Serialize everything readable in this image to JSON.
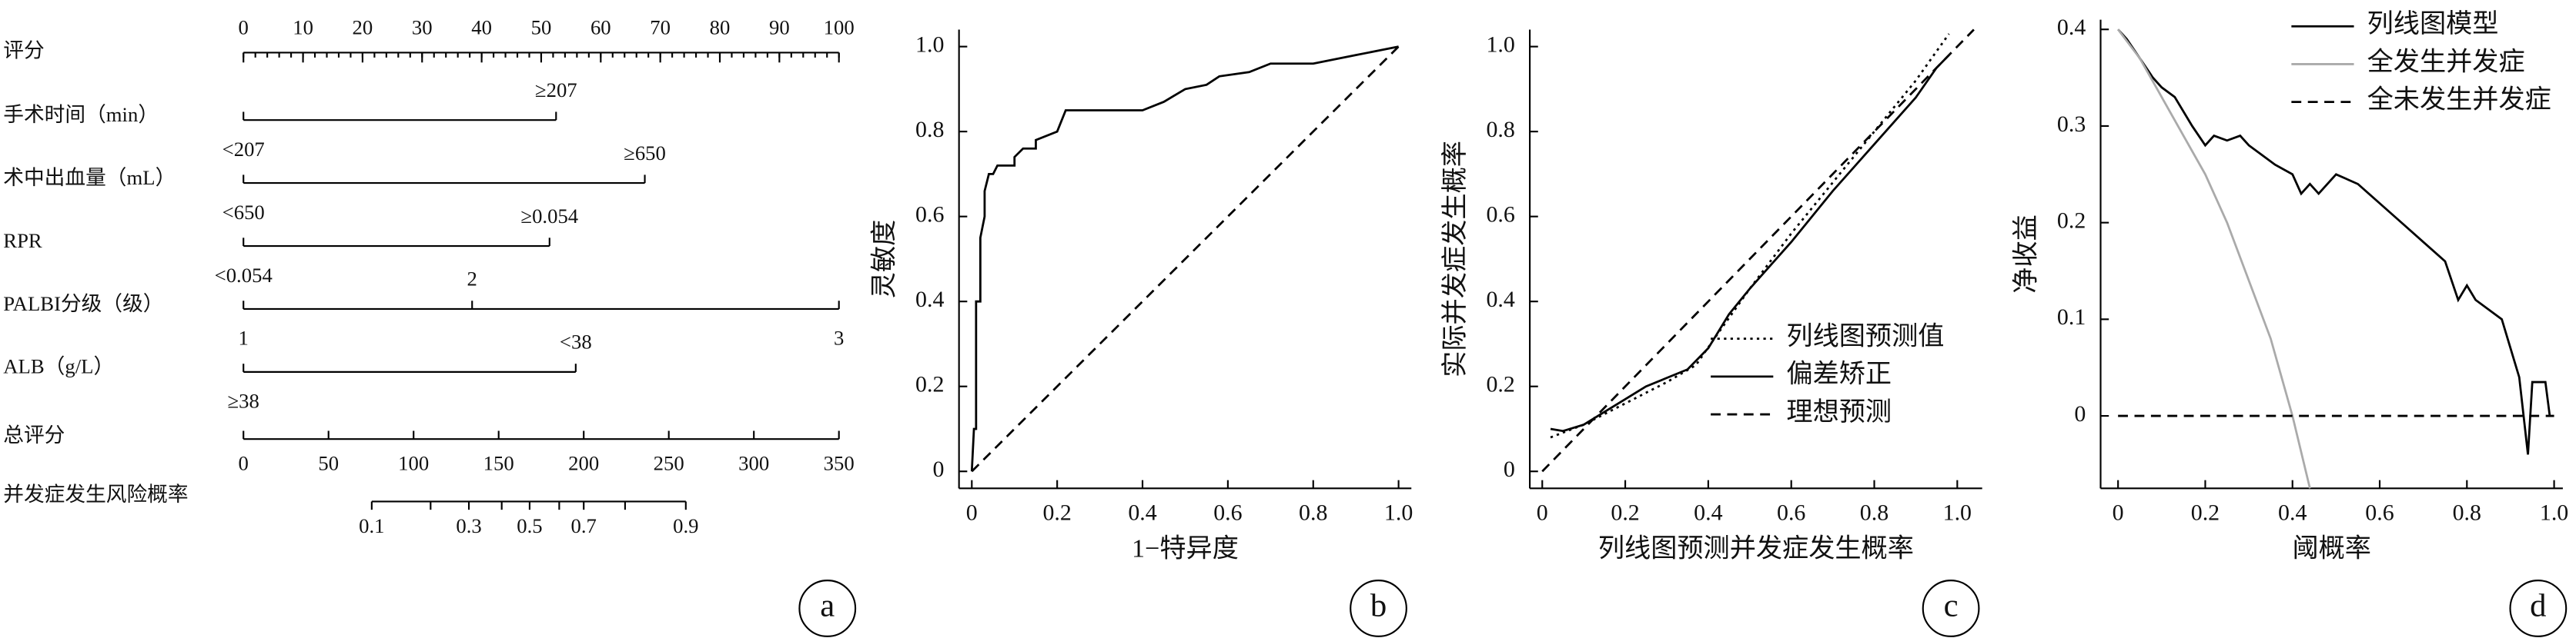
{
  "chart_data": [
    {
      "type": "nomogram",
      "panel": "a",
      "points_axis": {
        "name": "评分",
        "xlim": [
          0,
          100
        ],
        "ticks": [
          0,
          10,
          20,
          30,
          40,
          50,
          60,
          70,
          80,
          90,
          100
        ],
        "minor_ticks": [
          0,
          2,
          4,
          6,
          8,
          10,
          12,
          14,
          16,
          18,
          20,
          22,
          24,
          26,
          28,
          30,
          32,
          34,
          36,
          38,
          40,
          42,
          44,
          46,
          48,
          50,
          52,
          54,
          56,
          58,
          60,
          62,
          64,
          66,
          68,
          70,
          72,
          74,
          76,
          78,
          80,
          82,
          84,
          86,
          88,
          90,
          92,
          94,
          96,
          98,
          100
        ]
      },
      "variables": [
        {
          "name": "手术时间（min）",
          "levels": [
            {
              "label": "<207",
              "points": 0,
              "side": "below"
            },
            {
              "label": "≥207",
              "points": 52.5,
              "side": "above"
            }
          ]
        },
        {
          "name": "术中出血量（mL）",
          "levels": [
            {
              "label": "<650",
              "points": 0,
              "side": "below"
            },
            {
              "label": "≥650",
              "points": 67.4,
              "side": "above"
            }
          ]
        },
        {
          "name": "RPR",
          "levels": [
            {
              "label": "<0.054",
              "points": 0,
              "side": "below"
            },
            {
              "label": "≥0.054",
              "points": 51.4,
              "side": "above"
            }
          ]
        },
        {
          "name": "PALBI分级（级）",
          "levels": [
            {
              "label": "1",
              "points": 0,
              "side": "below"
            },
            {
              "label": "2",
              "points": 38.4,
              "side": "above"
            },
            {
              "label": "3",
              "points": 100,
              "side": "below"
            }
          ]
        },
        {
          "name": "ALB（g/L）",
          "levels": [
            {
              "label": "≥38",
              "points": 0,
              "side": "below"
            },
            {
              "label": "<38",
              "points": 55.8,
              "side": "above"
            }
          ]
        }
      ],
      "total_axis": {
        "name": "总评分",
        "xlim": [
          0,
          350
        ],
        "ticks": [
          0,
          50,
          100,
          150,
          200,
          250,
          300,
          350
        ]
      },
      "risk_axis": {
        "name": "并发症发生风险概率",
        "ticks": [
          {
            "points": 75.4,
            "label": "0.1"
          },
          {
            "points": 110
          },
          {
            "points": 132.5,
            "label": "0.3"
          },
          {
            "points": 151.8
          },
          {
            "points": 168.2,
            "label": "0.5"
          },
          {
            "points": 185.6
          },
          {
            "points": 200,
            "label": "0.7"
          },
          {
            "points": 224.3
          },
          {
            "points": 260,
            "label": "0.9"
          }
        ]
      }
    },
    {
      "type": "line",
      "panel": "b",
      "xlabel": "1−特异度",
      "ylabel": "灵敏度",
      "xlim": [
        -0.03,
        1.03
      ],
      "ylim": [
        -0.04,
        1.04
      ],
      "xticks": [
        0,
        0.2,
        0.4,
        0.6,
        0.8,
        {
          "value": 1,
          "label": "1.0"
        }
      ],
      "yticks": [
        0,
        0.2,
        0.4,
        0.6,
        0.8,
        {
          "value": 1,
          "label": "1.0"
        }
      ],
      "series": [
        {
          "color": "#000000",
          "style": "solid",
          "x": [
            0,
            0.005,
            0.01,
            0.01,
            0.02,
            0.02,
            0.03,
            0.03,
            0.04,
            0.05,
            0.06,
            0.1,
            0.1,
            0.12,
            0.15,
            0.15,
            0.2,
            0.22,
            0.3,
            0.4,
            0.45,
            0.5,
            0.55,
            0.58,
            0.65,
            0.7,
            0.8,
            0.9,
            1
          ],
          "values": [
            0,
            0.1,
            0.1,
            0.4,
            0.4,
            0.55,
            0.6,
            0.66,
            0.7,
            0.7,
            0.72,
            0.72,
            0.74,
            0.76,
            0.76,
            0.78,
            0.8,
            0.85,
            0.85,
            0.85,
            0.87,
            0.9,
            0.91,
            0.93,
            0.94,
            0.96,
            0.96,
            0.98,
            1
          ]
        },
        {
          "color": "#000000",
          "style": "dashed",
          "x": [
            0,
            1.01
          ],
          "values": [
            0,
            1.01
          ]
        }
      ]
    },
    {
      "type": "line",
      "panel": "c",
      "xlabel": "列线图预测并发症发生概率",
      "ylabel": "实际并发症发生概率",
      "xlim": [
        -0.03,
        1.06
      ],
      "ylim": [
        -0.04,
        1.04
      ],
      "xticks": [
        0,
        0.2,
        0.4,
        0.6,
        0.8,
        {
          "value": 1,
          "label": "1.0"
        }
      ],
      "yticks": [
        0,
        0.2,
        0.4,
        0.6,
        0.8,
        {
          "value": 1,
          "label": "1.0"
        }
      ],
      "legend": "lower right",
      "series": [
        {
          "name": "列线图预测值",
          "color": "#000000",
          "style": "dotted",
          "x": [
            0.02,
            0.1,
            0.2,
            0.3,
            0.37,
            0.42,
            0.5,
            0.6,
            0.7,
            0.8,
            0.9,
            0.98
          ],
          "values": [
            0.08,
            0.11,
            0.16,
            0.21,
            0.25,
            0.32,
            0.43,
            0.56,
            0.68,
            0.8,
            0.92,
            1.03
          ]
        },
        {
          "name": "偏差矫正",
          "color": "#000000",
          "style": "solid",
          "x": [
            0.02,
            0.05,
            0.1,
            0.15,
            0.2,
            0.25,
            0.3,
            0.35,
            0.4,
            0.45,
            0.5,
            0.6,
            0.7,
            0.8,
            0.9,
            0.95,
            0.98
          ],
          "values": [
            0.1,
            0.095,
            0.11,
            0.14,
            0.17,
            0.2,
            0.22,
            0.24,
            0.29,
            0.37,
            0.43,
            0.54,
            0.66,
            0.77,
            0.88,
            0.95,
            0.98
          ]
        },
        {
          "name": "理想预测",
          "color": "#000000",
          "style": "dashed",
          "x": [
            0,
            1.04
          ],
          "values": [
            0,
            1.04
          ]
        }
      ]
    },
    {
      "type": "line",
      "panel": "d",
      "xlabel": "阈概率",
      "ylabel": "净收益",
      "xlim": [
        -0.04,
        1.02
      ],
      "ylim": [
        -0.075,
        0.41
      ],
      "xticks": [
        0,
        0.2,
        0.4,
        0.6,
        0.8,
        {
          "value": 1,
          "label": "1.0"
        }
      ],
      "yticks": [
        0,
        0.1,
        0.2,
        0.3,
        0.4
      ],
      "legend": "upper right",
      "series": [
        {
          "name": "列线图模型",
          "color": "#000000",
          "style": "solid",
          "x": [
            0,
            0.02,
            0.05,
            0.08,
            0.1,
            0.13,
            0.17,
            0.2,
            0.22,
            0.25,
            0.28,
            0.3,
            0.33,
            0.36,
            0.4,
            0.42,
            0.44,
            0.46,
            0.5,
            0.55,
            0.6,
            0.65,
            0.7,
            0.75,
            0.78,
            0.8,
            0.82,
            0.88,
            0.9,
            0.92,
            0.93,
            0.94,
            0.95,
            0.98,
            0.99
          ],
          "values": [
            0.4,
            0.39,
            0.37,
            0.35,
            0.34,
            0.33,
            0.3,
            0.28,
            0.29,
            0.285,
            0.29,
            0.28,
            0.27,
            0.26,
            0.25,
            0.23,
            0.24,
            0.23,
            0.25,
            0.24,
            0.22,
            0.2,
            0.18,
            0.16,
            0.12,
            0.135,
            0.12,
            0.1,
            0.07,
            0.04,
            0,
            -0.04,
            0.035,
            0.035,
            0
          ]
        },
        {
          "name": "全发生并发症",
          "color": "#aaaaaa",
          "style": "solid",
          "x": [
            0,
            0.05,
            0.1,
            0.15,
            0.2,
            0.25,
            0.3,
            0.35,
            0.4,
            0.44
          ],
          "values": [
            0.4,
            0.37,
            0.33,
            0.29,
            0.25,
            0.2,
            0.14,
            0.08,
            0,
            -0.075
          ]
        },
        {
          "name": "全未发生并发症",
          "color": "#000000",
          "style": "dashed",
          "x": [
            0,
            1
          ],
          "values": [
            0,
            0
          ]
        }
      ]
    }
  ]
}
